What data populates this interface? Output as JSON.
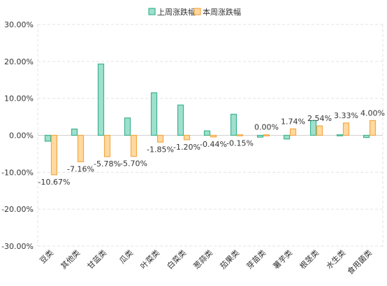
{
  "chart_data": {
    "type": "bar",
    "categories": [
      "豆类",
      "其他类",
      "甘蓝类",
      "瓜类",
      "叶菜类",
      "白菜类",
      "葱蒜类",
      "茄果类",
      "芽苗类",
      "薯芋类",
      "根茎类",
      "水生类",
      "食用菌类"
    ],
    "series": [
      {
        "name": "上周涨跌幅",
        "color": "#9fe0cd",
        "stroke": "#3bb38f",
        "values": [
          -1.6,
          1.7,
          19.3,
          4.7,
          11.5,
          8.2,
          1.2,
          5.7,
          -0.5,
          -1.0,
          4.0,
          0.0,
          -0.6
        ]
      },
      {
        "name": "本周涨跌幅",
        "color": "#ffd9a0",
        "stroke": "#f5a742",
        "values": [
          -10.67,
          -7.16,
          -5.78,
          -5.7,
          -1.85,
          -1.2,
          -0.44,
          -0.15,
          0.0,
          1.74,
          2.54,
          3.33,
          4.0
        ],
        "labels": [
          "-10.67%",
          "-7.16%",
          "-5.78%",
          "-5.70%",
          "-1.85%",
          "-1.20%",
          "-0.44%",
          "-0.15%",
          "0.00%",
          "1.74%",
          "2.54%",
          "3.33%",
          "4.00%"
        ]
      }
    ],
    "ylim": [
      -30,
      30
    ],
    "yticks": [
      30,
      20,
      10,
      0,
      -10,
      -20,
      -30
    ],
    "ytick_labels": [
      "30.00%",
      "20.00%",
      "10.00%",
      "0.00%",
      "-10.00%",
      "-20.00%",
      "-30.00%"
    ],
    "legend_position": "top-center",
    "grid": true
  }
}
